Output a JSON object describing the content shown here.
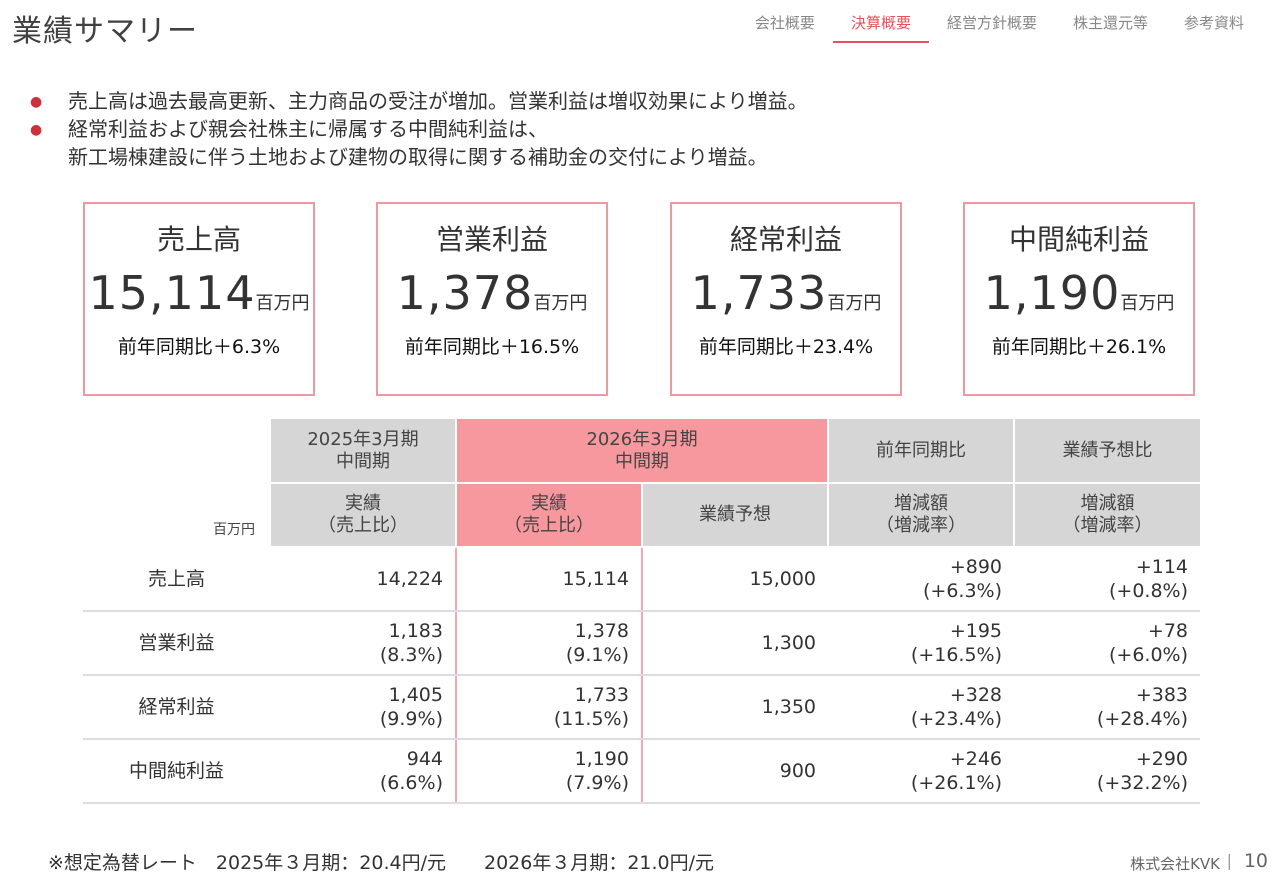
{
  "title": "業績サマリー",
  "nav": [
    "会社概要",
    "決算概要",
    "経営方針概要",
    "株主還元等",
    "参考資料"
  ],
  "nav_active_index": 1,
  "bullets": [
    [
      "売上高は過去最高更新、主力商品の受注が増加。営業利益は増収効果により増益。"
    ],
    [
      "経常利益および親会社株主に帰属する中間純利益は、",
      "新工場棟建設に伴う土地および建物の取得に関する補助金の交付により増益。"
    ]
  ],
  "kpis": [
    {
      "label": "売上高",
      "value": "15,114",
      "unit": "百万円",
      "yoy": "前年同期比＋6.3%"
    },
    {
      "label": "営業利益",
      "value": "1,378",
      "unit": "百万円",
      "yoy": "前年同期比＋16.5%"
    },
    {
      "label": "経常利益",
      "value": "1,733",
      "unit": "百万円",
      "yoy": "前年同期比＋23.4%"
    },
    {
      "label": "中間純利益",
      "value": "1,190",
      "unit": "百万円",
      "yoy": "前年同期比＋26.1%"
    }
  ],
  "table": {
    "unit": "百万円",
    "group_headers": [
      {
        "line1": "2025年3月期",
        "line2": "中間期"
      },
      {
        "line1": "2026年3月期",
        "line2": "中間期"
      },
      {
        "line1": "前年同期比",
        "line2": ""
      },
      {
        "line1": "業績予想比",
        "line2": ""
      }
    ],
    "sub_headers": [
      {
        "line1": "実績",
        "line2": "（売上比）"
      },
      {
        "line1": "実績",
        "line2": "（売上比）"
      },
      {
        "line1": "業績予想",
        "line2": ""
      },
      {
        "line1": "増減額",
        "line2": "（増減率）"
      },
      {
        "line1": "増減額",
        "line2": "（増減率）"
      }
    ],
    "rows": [
      {
        "label": "売上高",
        "cells": [
          [
            "14,224",
            ""
          ],
          [
            "15,114",
            ""
          ],
          [
            "15,000",
            ""
          ],
          [
            "+890",
            "(+6.3%)"
          ],
          [
            "+114",
            "(+0.8%)"
          ]
        ]
      },
      {
        "label": "営業利益",
        "cells": [
          [
            "1,183",
            "(8.3%)"
          ],
          [
            "1,378",
            "(9.1%)"
          ],
          [
            "1,300",
            ""
          ],
          [
            "+195",
            "(+16.5%)"
          ],
          [
            "+78",
            "(+6.0%)"
          ]
        ]
      },
      {
        "label": "経常利益",
        "cells": [
          [
            "1,405",
            "(9.9%)"
          ],
          [
            "1,733",
            "(11.5%)"
          ],
          [
            "1,350",
            ""
          ],
          [
            "+328",
            "(+23.4%)"
          ],
          [
            "+383",
            "(+28.4%)"
          ]
        ]
      },
      {
        "label": "中間純利益",
        "cells": [
          [
            "944",
            "(6.6%)"
          ],
          [
            "1,190",
            "(7.9%)"
          ],
          [
            "900",
            ""
          ],
          [
            "+246",
            "(+26.1%)"
          ],
          [
            "+290",
            "(+32.2%)"
          ]
        ]
      }
    ]
  },
  "footnote": "※想定為替レート　2025年３月期：20.4円/元　　2026年３月期：21.0円/元",
  "company": "株式会社KVK",
  "page_number": "10",
  "colors": {
    "accent": "#e5525c",
    "pink_header": "#f7979e",
    "gray_header": "#d6d6d6",
    "kpi_border": "#ec9aa0"
  }
}
